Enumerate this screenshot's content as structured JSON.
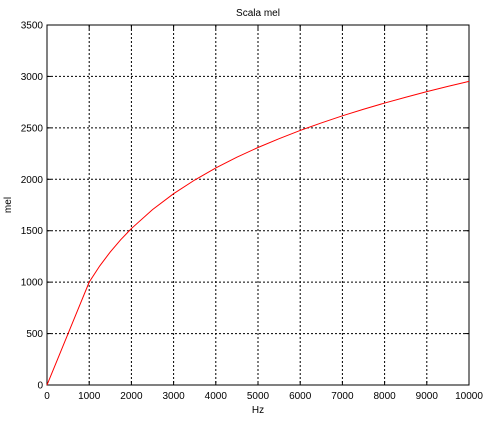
{
  "chart_data": {
    "type": "line",
    "title": "Scala mel",
    "xlabel": "Hz",
    "ylabel": "mel",
    "xlim": [
      0,
      10000
    ],
    "ylim": [
      0,
      3500
    ],
    "xticks": [
      0,
      1000,
      2000,
      3000,
      4000,
      5000,
      6000,
      7000,
      8000,
      9000,
      10000
    ],
    "yticks": [
      0,
      500,
      1000,
      1500,
      2000,
      2500,
      3000,
      3500
    ],
    "grid": true,
    "series": [
      {
        "color": "#ff0000",
        "x": [
          0,
          250,
          500,
          750,
          1000,
          1250,
          1500,
          1750,
          2000,
          2500,
          3000,
          3500,
          4000,
          4500,
          5000,
          5500,
          6000,
          6500,
          7000,
          7500,
          8000,
          8500,
          9000,
          9500,
          10000
        ],
        "y": [
          0,
          250,
          500,
          750,
          1000,
          1158,
          1294,
          1414,
          1521,
          1705,
          1860,
          1993,
          2110,
          2215,
          2309,
          2395,
          2475,
          2548,
          2617,
          2681,
          2741,
          2798,
          2852,
          2903,
          2952
        ]
      }
    ]
  }
}
